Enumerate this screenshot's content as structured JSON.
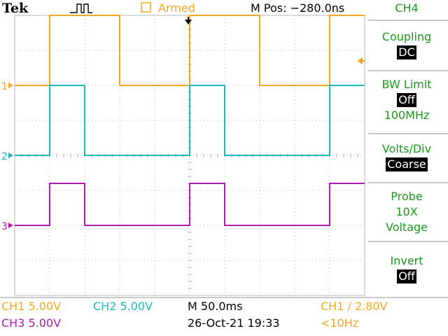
{
  "brand": "Tek",
  "acq_state": "Armed",
  "horizontal_position": "M Pos: −280.0ns",
  "menu": {
    "channel": "CH4",
    "coupling": {
      "label": "Coupling",
      "value": "DC"
    },
    "bw_limit": {
      "label": "BW Limit",
      "value": "Off",
      "freq": "100MHz"
    },
    "volts_div": {
      "label": "Volts/Div",
      "value": "Coarse"
    },
    "probe": {
      "label": "Probe",
      "attenuation": "10X",
      "type": "Voltage"
    },
    "invert": {
      "label": "Invert",
      "value": "Off"
    }
  },
  "status": {
    "ch1_scale": "CH1  5.00V",
    "ch2_scale": "CH2  5.00V",
    "ch3_scale": "CH3  5.00V",
    "timebase": "M 50.0ms",
    "date": "26-Oct-21 19:33",
    "trigger": "CH1 ∕ 2.80V",
    "frequency": "<10Hz"
  },
  "channels": [
    {
      "marker": "1",
      "color": "#f5a623"
    },
    {
      "marker": "2",
      "color": "#1fb8b8"
    },
    {
      "marker": "3",
      "color": "#b01cb0"
    }
  ],
  "colors": {
    "menu": "#1a9a1a",
    "ch1": "#f5a623",
    "ch2": "#1fb8b8",
    "ch3": "#b01cb0"
  },
  "chart_data": {
    "type": "line",
    "x_divisions": 10,
    "y_divisions": 8,
    "x_range_div": [
      0,
      10
    ],
    "series": [
      {
        "channel": "CH1",
        "color": "#f5a623",
        "low": 2.0,
        "high": 4.0,
        "edges": [
          [
            0,
            "L"
          ],
          [
            1.0,
            "H"
          ],
          [
            3.0,
            "L"
          ],
          [
            5.0,
            "H"
          ],
          [
            7.0,
            "L"
          ],
          [
            9.0,
            "H"
          ],
          [
            10,
            "H"
          ]
        ]
      },
      {
        "channel": "CH2",
        "color": "#1fb8b8",
        "low": 0.0,
        "high": 2.0,
        "edges": [
          [
            0,
            "L"
          ],
          [
            1.0,
            "H"
          ],
          [
            2.0,
            "L"
          ],
          [
            5.0,
            "H"
          ],
          [
            6.0,
            "L"
          ],
          [
            9.0,
            "H"
          ],
          [
            10,
            "H"
          ]
        ]
      },
      {
        "channel": "CH3",
        "color": "#b01cb0",
        "low": -2.0,
        "high": -0.8,
        "edges": [
          [
            0,
            "L"
          ],
          [
            1.0,
            "H"
          ],
          [
            2.0,
            "L"
          ],
          [
            5.0,
            "H"
          ],
          [
            6.0,
            "L"
          ],
          [
            9.0,
            "H"
          ],
          [
            10,
            "H"
          ]
        ]
      }
    ]
  }
}
